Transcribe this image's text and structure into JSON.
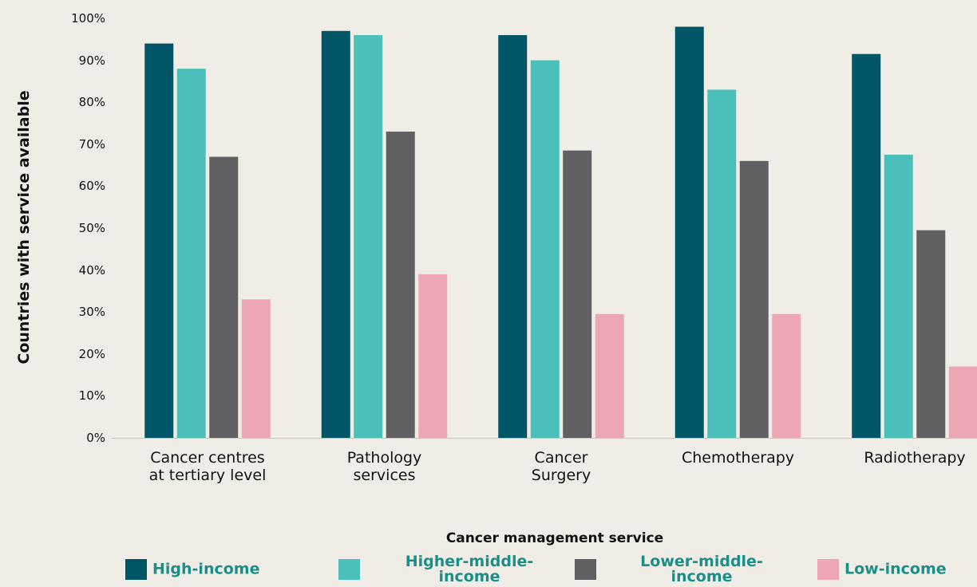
{
  "chart_data": {
    "type": "bar",
    "y_label": "Countries with service available",
    "x_label": "Cancer management service",
    "categories": [
      "Cancer centres\nat tertiary level",
      "Pathology\nservices",
      "Cancer\nSurgery",
      "Chemotherapy",
      "Radiotherapy"
    ],
    "series": [
      {
        "name": "High-income",
        "color": "#005566",
        "values": [
          94,
          97,
          96,
          98,
          91.5
        ]
      },
      {
        "name": "Higher-middle-\nincome",
        "color": "#4bbfb9",
        "values": [
          88,
          96,
          90,
          83,
          67.5
        ]
      },
      {
        "name": "Lower-middle-\nincome",
        "color": "#606062",
        "values": [
          67,
          73,
          68.5,
          66,
          49.5
        ]
      },
      {
        "name": "Low-income",
        "color": "#eda6b3",
        "values": [
          33,
          39,
          29.5,
          29.5,
          17
        ]
      }
    ],
    "ylim": [
      0,
      100
    ],
    "yticks": [
      {
        "value": 0,
        "label": "0%"
      },
      {
        "value": 10,
        "label": "10%"
      },
      {
        "value": 20,
        "label": "20%"
      },
      {
        "value": 30,
        "label": "30%"
      },
      {
        "value": 40,
        "label": "40%"
      },
      {
        "value": 50,
        "label": "50%"
      },
      {
        "value": 60,
        "label": "60%"
      },
      {
        "value": 70,
        "label": "70%"
      },
      {
        "value": 80,
        "label": "80%"
      },
      {
        "value": 90,
        "label": "90%"
      },
      {
        "value": 100,
        "label": "100%"
      }
    ],
    "grid": false,
    "legend": "bottom"
  }
}
